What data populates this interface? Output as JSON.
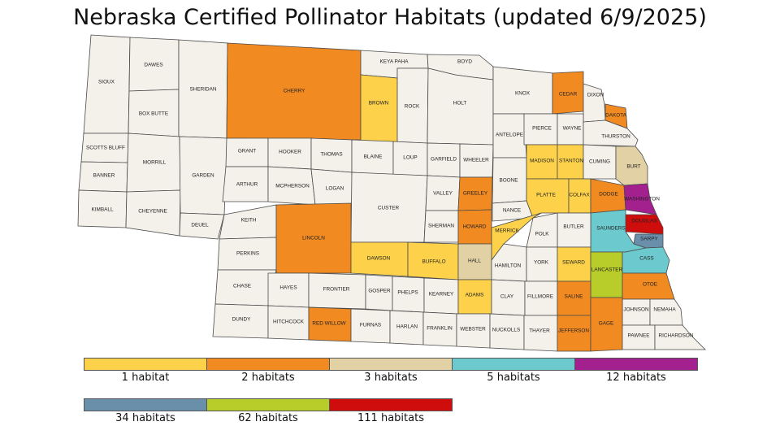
{
  "title": "Nebraska Certified Pollinator Habitats (updated 6/9/2025)",
  "colors": {
    "none": "#f4f1ea",
    "1": "#fdd24a",
    "2": "#f28a22",
    "3": "#e2d1a4",
    "5": "#6cc9cd",
    "12": "#a3208f",
    "34": "#6a8fab",
    "62": "#b8cc2a",
    "111": "#cf0d0d",
    "border": "#4a4a4a"
  },
  "legend": [
    {
      "key": "1",
      "label": "1 habitat"
    },
    {
      "key": "2",
      "label": "2 habitats"
    },
    {
      "key": "3",
      "label": "3 habitats"
    },
    {
      "key": "5",
      "label": "5 habitats"
    },
    {
      "key": "12",
      "label": "12 habitats"
    },
    {
      "key": "34",
      "label": "34 habitats"
    },
    {
      "key": "62",
      "label": "62 habitats"
    },
    {
      "key": "111",
      "label": "111 habitats"
    }
  ],
  "counties": [
    {
      "name": "SIOUX",
      "cls": "none"
    },
    {
      "name": "DAWES",
      "cls": "none"
    },
    {
      "name": "BOX BUTTE",
      "cls": "none"
    },
    {
      "name": "SHERIDAN",
      "cls": "none"
    },
    {
      "name": "CHERRY",
      "cls": "2"
    },
    {
      "name": "KEYA PAHA",
      "cls": "none"
    },
    {
      "name": "BOYD",
      "cls": "none"
    },
    {
      "name": "BROWN",
      "cls": "1"
    },
    {
      "name": "ROCK",
      "cls": "none"
    },
    {
      "name": "HOLT",
      "cls": "none"
    },
    {
      "name": "KNOX",
      "cls": "none"
    },
    {
      "name": "CEDAR",
      "cls": "2"
    },
    {
      "name": "DIXON",
      "cls": "none"
    },
    {
      "name": "DAKOTA",
      "cls": "2"
    },
    {
      "name": "SCOTTS BLUFF",
      "cls": "none"
    },
    {
      "name": "BANNER",
      "cls": "none"
    },
    {
      "name": "KIMBALL",
      "cls": "none"
    },
    {
      "name": "MORRILL",
      "cls": "none"
    },
    {
      "name": "CHEYENNE",
      "cls": "none"
    },
    {
      "name": "GARDEN",
      "cls": "none"
    },
    {
      "name": "DEUEL",
      "cls": "none"
    },
    {
      "name": "GRANT",
      "cls": "none"
    },
    {
      "name": "HOOKER",
      "cls": "none"
    },
    {
      "name": "THOMAS",
      "cls": "none"
    },
    {
      "name": "BLAINE",
      "cls": "none"
    },
    {
      "name": "LOUP",
      "cls": "none"
    },
    {
      "name": "GARFIELD",
      "cls": "none"
    },
    {
      "name": "WHEELER",
      "cls": "none"
    },
    {
      "name": "ANTELOPE",
      "cls": "none"
    },
    {
      "name": "PIERCE",
      "cls": "none"
    },
    {
      "name": "WAYNE",
      "cls": "none"
    },
    {
      "name": "THURSTON",
      "cls": "none"
    },
    {
      "name": "ARTHUR",
      "cls": "none"
    },
    {
      "name": "MCPHERSON",
      "cls": "none"
    },
    {
      "name": "LOGAN",
      "cls": "none"
    },
    {
      "name": "CUSTER",
      "cls": "none"
    },
    {
      "name": "VALLEY",
      "cls": "none"
    },
    {
      "name": "GREELEY",
      "cls": "2"
    },
    {
      "name": "BOONE",
      "cls": "none"
    },
    {
      "name": "MADISON",
      "cls": "1"
    },
    {
      "name": "STANTON",
      "cls": "1"
    },
    {
      "name": "CUMING",
      "cls": "none"
    },
    {
      "name": "BURT",
      "cls": "3"
    },
    {
      "name": "KEITH",
      "cls": "none"
    },
    {
      "name": "PERKINS",
      "cls": "none"
    },
    {
      "name": "LINCOLN",
      "cls": "2"
    },
    {
      "name": "SHERMAN",
      "cls": "none"
    },
    {
      "name": "HOWARD",
      "cls": "2"
    },
    {
      "name": "NANCE",
      "cls": "none"
    },
    {
      "name": "PLATTE",
      "cls": "1"
    },
    {
      "name": "COLFAX",
      "cls": "1"
    },
    {
      "name": "DODGE",
      "cls": "2"
    },
    {
      "name": "WASHINGTON",
      "cls": "12"
    },
    {
      "name": "DOUGLAS",
      "cls": "111"
    },
    {
      "name": "SARPY",
      "cls": "34"
    },
    {
      "name": "SAUNDERS",
      "cls": "5"
    },
    {
      "name": "BUTLER",
      "cls": "none"
    },
    {
      "name": "POLK",
      "cls": "none"
    },
    {
      "name": "MERRICK",
      "cls": "1"
    },
    {
      "name": "DAWSON",
      "cls": "1"
    },
    {
      "name": "BUFFALO",
      "cls": "1"
    },
    {
      "name": "HALL",
      "cls": "3"
    },
    {
      "name": "HAMILTON",
      "cls": "none"
    },
    {
      "name": "YORK",
      "cls": "none"
    },
    {
      "name": "SEWARD",
      "cls": "1"
    },
    {
      "name": "LANCASTER",
      "cls": "62"
    },
    {
      "name": "CASS",
      "cls": "5"
    },
    {
      "name": "OTOE",
      "cls": "2"
    },
    {
      "name": "CHASE",
      "cls": "none"
    },
    {
      "name": "HAYES",
      "cls": "none"
    },
    {
      "name": "FRONTIER",
      "cls": "none"
    },
    {
      "name": "GOSPER",
      "cls": "none"
    },
    {
      "name": "PHELPS",
      "cls": "none"
    },
    {
      "name": "KEARNEY",
      "cls": "none"
    },
    {
      "name": "ADAMS",
      "cls": "1"
    },
    {
      "name": "CLAY",
      "cls": "none"
    },
    {
      "name": "FILLMORE",
      "cls": "none"
    },
    {
      "name": "SALINE",
      "cls": "2"
    },
    {
      "name": "JOHNSON",
      "cls": "none"
    },
    {
      "name": "NEMAHA",
      "cls": "none"
    },
    {
      "name": "DUNDY",
      "cls": "none"
    },
    {
      "name": "HITCHCOCK",
      "cls": "none"
    },
    {
      "name": "RED WILLOW",
      "cls": "2"
    },
    {
      "name": "FURNAS",
      "cls": "none"
    },
    {
      "name": "HARLAN",
      "cls": "none"
    },
    {
      "name": "FRANKLIN",
      "cls": "none"
    },
    {
      "name": "WEBSTER",
      "cls": "none"
    },
    {
      "name": "NUCKOLLS",
      "cls": "none"
    },
    {
      "name": "THAYER",
      "cls": "none"
    },
    {
      "name": "JEFFERSON",
      "cls": "2"
    },
    {
      "name": "GAGE",
      "cls": "2"
    },
    {
      "name": "PAWNEE",
      "cls": "none"
    },
    {
      "name": "RICHARDSON",
      "cls": "none"
    }
  ]
}
